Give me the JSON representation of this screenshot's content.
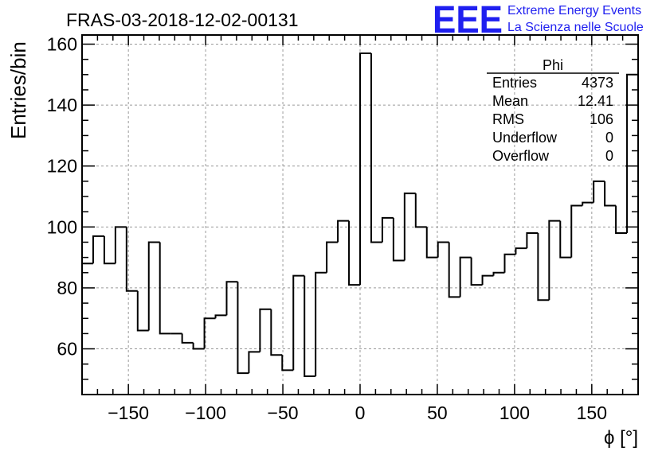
{
  "header": {
    "title": "FRAS-03-2018-12-02-00131"
  },
  "logo": {
    "mark": "EEE",
    "line1": "Extreme Energy Events",
    "line2": "La Scienza nelle Scuole",
    "color": "#1f1ff0"
  },
  "stats": {
    "name": "Phi",
    "rows": [
      {
        "label": "Entries",
        "value": "4373"
      },
      {
        "label": "Mean",
        "value": "12.41"
      },
      {
        "label": "RMS",
        "value": "106"
      },
      {
        "label": "Underflow",
        "value": "0"
      },
      {
        "label": "Overflow",
        "value": "0"
      }
    ]
  },
  "chart_data": {
    "type": "bar",
    "style": "step-histogram",
    "title": "FRAS-03-2018-12-02-00131",
    "xlabel": "ϕ [°]",
    "ylabel": "Entries/bin",
    "xlim": [
      -180,
      180
    ],
    "ylim": [
      45,
      163
    ],
    "bin_width": 7.2,
    "x_ticks": [
      -150,
      -100,
      -50,
      0,
      50,
      100,
      150
    ],
    "y_ticks": [
      60,
      80,
      100,
      120,
      140,
      160
    ],
    "grid": true,
    "values": [
      88,
      97,
      88,
      100,
      79,
      66,
      95,
      65,
      65,
      62,
      60,
      70,
      71,
      82,
      52,
      59,
      73,
      58,
      53,
      84,
      51,
      85,
      95,
      102,
      81,
      157,
      95,
      103,
      89,
      111,
      100,
      90,
      95,
      77,
      90,
      81,
      84,
      85,
      91,
      93,
      98,
      76,
      102,
      90,
      107,
      108,
      115,
      107,
      98,
      150
    ],
    "line_color": "#000000"
  }
}
